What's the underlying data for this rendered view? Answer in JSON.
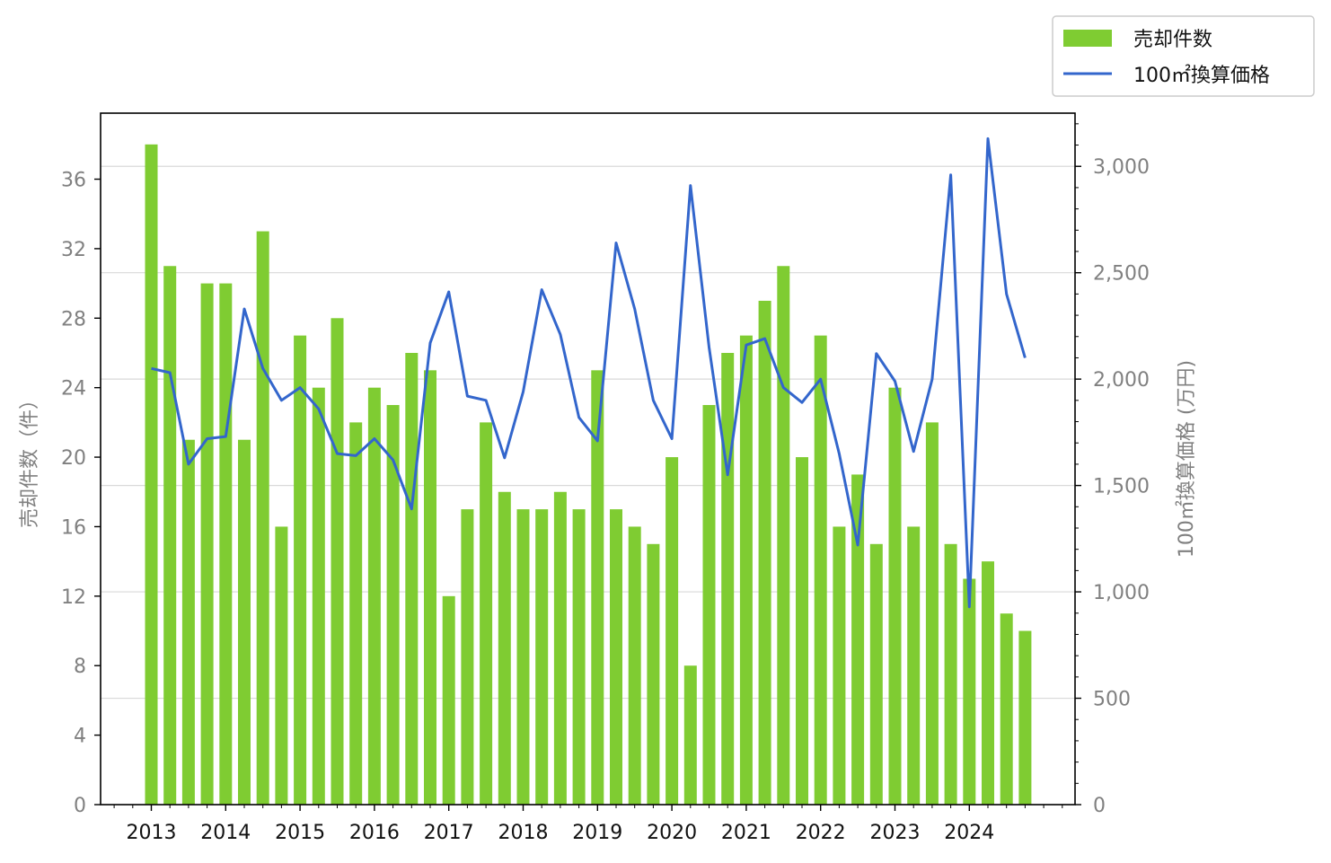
{
  "chart_data": {
    "type": "bar",
    "colors": {
      "bar": "#7fcc32",
      "line": "#3366cc",
      "grid": "#d9d9d9",
      "tick_text": "#808080"
    },
    "x_labels": [
      "2013",
      "2014",
      "2015",
      "2016",
      "2017",
      "2018",
      "2019",
      "2020",
      "2021",
      "2022",
      "2023",
      "2024"
    ],
    "quarters_per_year": 4,
    "series": [
      {
        "name": "売却件数",
        "type": "bar",
        "axis": "left",
        "values": [
          38,
          31,
          21,
          30,
          30,
          21,
          33,
          16,
          27,
          24,
          28,
          22,
          24,
          23,
          26,
          25,
          12,
          17,
          22,
          18,
          17,
          17,
          18,
          17,
          25,
          17,
          16,
          15,
          20,
          8,
          23,
          26,
          27,
          29,
          31,
          20,
          27,
          16,
          19,
          15,
          24,
          16,
          22,
          15,
          13,
          14,
          11,
          10
        ]
      },
      {
        "name": "100㎡換算価格",
        "type": "line",
        "axis": "right",
        "values": [
          2050,
          2030,
          1600,
          1720,
          1730,
          2330,
          2050,
          1900,
          1960,
          1860,
          1650,
          1640,
          1720,
          1620,
          1390,
          2170,
          2410,
          1920,
          1900,
          1630,
          1940,
          2420,
          2210,
          1820,
          1710,
          2640,
          2330,
          1900,
          1720,
          2910,
          2150,
          1550,
          2160,
          2190,
          1960,
          1890,
          2000,
          1650,
          1220,
          2120,
          1990,
          1660,
          2000,
          2960,
          930,
          3130,
          2400,
          2100
        ]
      }
    ],
    "y_left": {
      "label": "売却件数（件）",
      "ticks": [
        0,
        4,
        8,
        12,
        16,
        20,
        24,
        28,
        32,
        36
      ],
      "tick_labels": [
        "0",
        "4",
        "8",
        "12",
        "16",
        "20",
        "24",
        "28",
        "32",
        "36"
      ],
      "range": [
        0,
        39.8
      ]
    },
    "y_right": {
      "label": "100㎡換算価格 (万円)",
      "ticks": [
        0,
        500,
        1000,
        1500,
        2000,
        2500,
        3000
      ],
      "tick_labels": [
        "0",
        "500",
        "1,000",
        "1,500",
        "2,000",
        "2,500",
        "3,000"
      ],
      "range": [
        0,
        3250
      ]
    },
    "grid": "right-axis horizontal",
    "legend": {
      "placement": "top-right, outside plot",
      "entries": [
        "売却件数",
        "100㎡換算価格"
      ]
    }
  }
}
